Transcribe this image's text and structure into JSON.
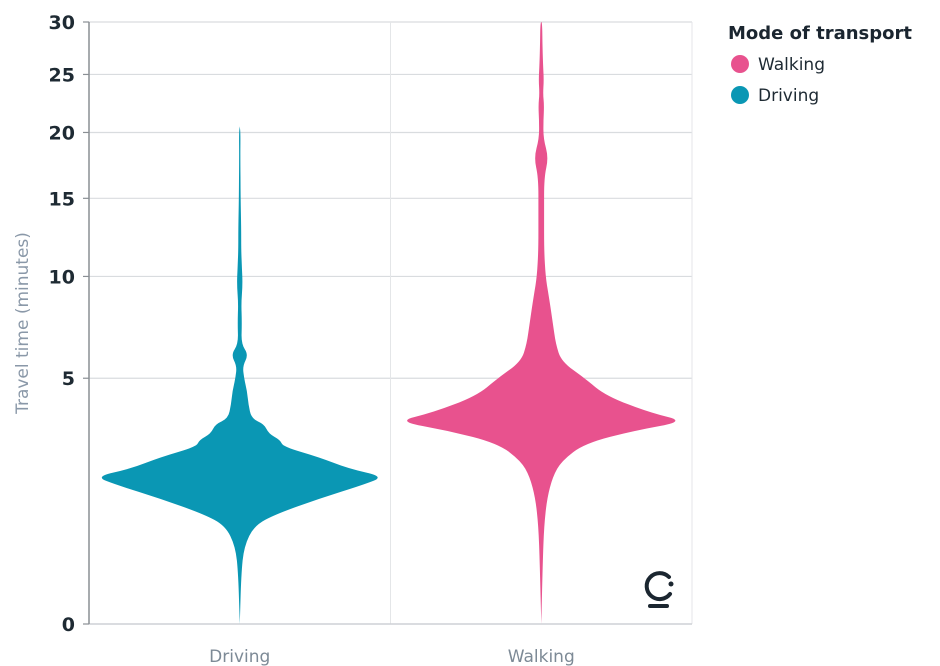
{
  "chart_data": {
    "type": "violin",
    "ylabel": "Travel time (minutes)",
    "categories": [
      "Driving",
      "Walking"
    ],
    "yticks": [
      0,
      5,
      10,
      15,
      20,
      25,
      30
    ],
    "ylim": [
      0,
      30
    ],
    "y_scale": "sqrt",
    "grid": true,
    "legend": {
      "title": "Mode of transport",
      "placement": "top-right",
      "items": [
        {
          "label": "Walking",
          "color": "#e8528e"
        },
        {
          "label": "Driving",
          "color": "#0a97b4"
        }
      ]
    },
    "series": [
      {
        "name": "Driving",
        "color": "#0a97b4",
        "density": [
          [
            0.0,
            0.0
          ],
          [
            0.2,
            0.01
          ],
          [
            0.5,
            0.03
          ],
          [
            0.8,
            0.1
          ],
          [
            1.0,
            0.25
          ],
          [
            1.3,
            0.55
          ],
          [
            1.6,
            0.85
          ],
          [
            1.8,
            1.0
          ],
          [
            2.0,
            0.75
          ],
          [
            2.3,
            0.55
          ],
          [
            2.6,
            0.3
          ],
          [
            2.8,
            0.28
          ],
          [
            3.0,
            0.2
          ],
          [
            3.3,
            0.17
          ],
          [
            3.5,
            0.08
          ],
          [
            4.0,
            0.06
          ],
          [
            4.5,
            0.05
          ],
          [
            5.0,
            0.03
          ],
          [
            5.5,
            0.02
          ],
          [
            6.0,
            0.06
          ],
          [
            6.5,
            0.01
          ],
          [
            7.5,
            0.015
          ],
          [
            8.5,
            0.01
          ],
          [
            9.5,
            0.02
          ],
          [
            10.5,
            0.015
          ],
          [
            11.5,
            0.01
          ],
          [
            13.0,
            0.01
          ],
          [
            15.0,
            0.006
          ],
          [
            18.0,
            0.004
          ],
          [
            20.0,
            0.005
          ],
          [
            20.5,
            0.0
          ]
        ]
      },
      {
        "name": "Walking",
        "color": "#e8528e",
        "density": [
          [
            0.0,
            0.0
          ],
          [
            0.3,
            0.01
          ],
          [
            0.8,
            0.02
          ],
          [
            1.3,
            0.04
          ],
          [
            1.8,
            0.08
          ],
          [
            2.2,
            0.14
          ],
          [
            2.7,
            0.3
          ],
          [
            3.1,
            0.65
          ],
          [
            3.4,
            1.0
          ],
          [
            3.7,
            0.75
          ],
          [
            4.3,
            0.45
          ],
          [
            5.0,
            0.3
          ],
          [
            5.7,
            0.14
          ],
          [
            6.5,
            0.1
          ],
          [
            7.5,
            0.08
          ],
          [
            9.0,
            0.05
          ],
          [
            10.0,
            0.03
          ],
          [
            11.5,
            0.02
          ],
          [
            14.0,
            0.02
          ],
          [
            16.5,
            0.02
          ],
          [
            18.0,
            0.05
          ],
          [
            19.5,
            0.015
          ],
          [
            21.0,
            0.015
          ],
          [
            22.3,
            0.02
          ],
          [
            23.2,
            0.012
          ],
          [
            24.5,
            0.018
          ],
          [
            26.0,
            0.012
          ],
          [
            28.0,
            0.008
          ],
          [
            30.0,
            0.006
          ]
        ]
      }
    ]
  },
  "logo_icon": "brand-logo-icon"
}
